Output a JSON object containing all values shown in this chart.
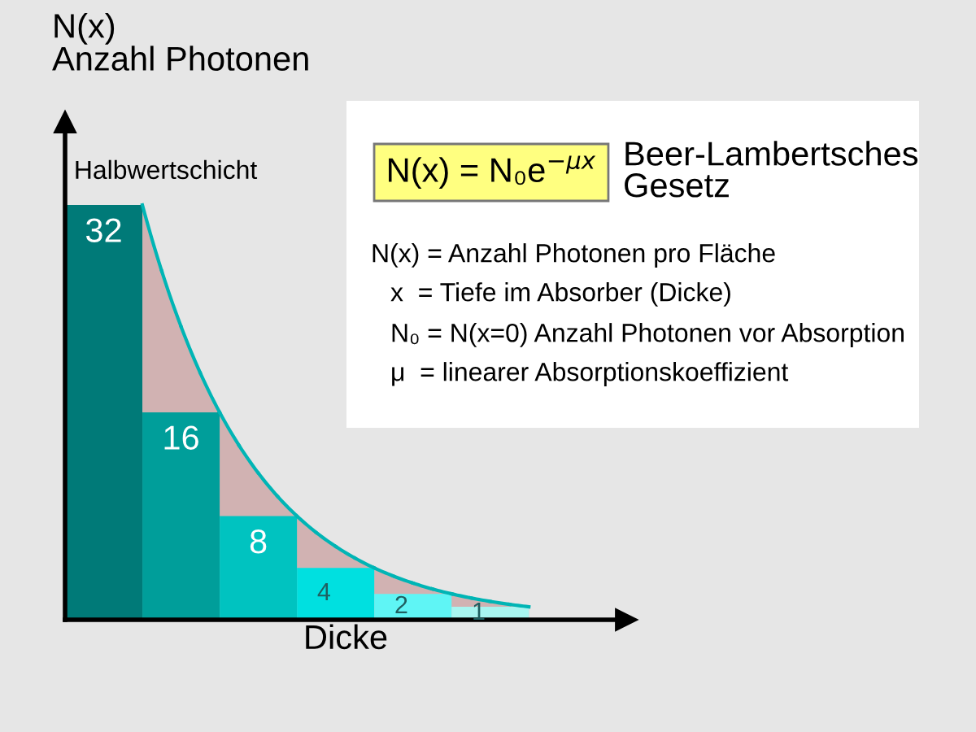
{
  "chart_data": {
    "type": "bar",
    "xlabel": "Dicke",
    "ylabel": "N(x)\nAnzahl Photonen",
    "categories": [
      null,
      null,
      null,
      null,
      null,
      null
    ],
    "data_labels": true,
    "values": [
      32,
      16,
      8,
      4,
      2,
      1
    ],
    "colors": [
      "#007a78",
      "#009e9a",
      "#00c3c0",
      "#00e0e0",
      "#5ff5f5",
      "#a8f5f0"
    ],
    "annotations": [
      "Halbwertschicht",
      "N(x) = N₀e$^{−μx}$",
      "Beer-Lambertsches\nGesetz",
      "N(x) = Anzahl Photonen pro Fläche",
      "x  = Tiefe im Absorber (Dicke)",
      "N₀ = N(x=0) Anzahl Photonen vor Absorption",
      "μ  = linearer Absorptionskoeffizient"
    ]
  }
}
